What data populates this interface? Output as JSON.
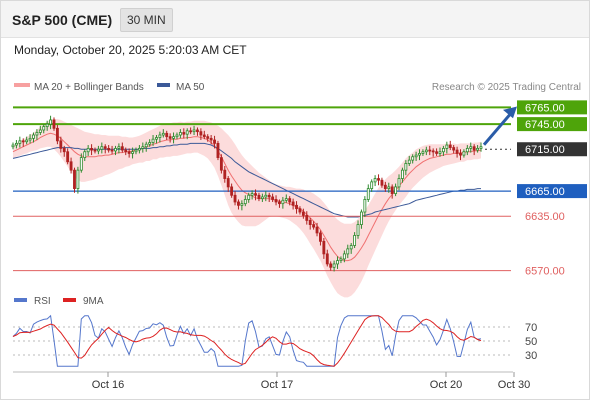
{
  "header": {
    "title": "S&P 500 (CME)",
    "interval": "30 MIN",
    "timestamp": "Monday, October 20, 2025 5:20:03 AM CET"
  },
  "legend": {
    "ma20_bb": "MA 20 + Bollinger Bands",
    "ma50": "MA 50",
    "credit": "Research © 2025 Trading Central",
    "rsi": "RSI",
    "rsi_ma": "9MA"
  },
  "colors": {
    "resistance": "#4ea40a",
    "pivot": "#333333",
    "support_ma": "#1f5fbf",
    "support": "#e06060",
    "candle_up": "#2e8b2e",
    "candle_down": "#b02222",
    "bollinger": "#fbd0d0",
    "ma20": "#f07070",
    "ma50": "#3b5998",
    "rsi_line": "#5577cc",
    "rsi_ma_line": "#dd2222",
    "arrow": "#2a5ca8"
  },
  "chart_data": [
    {
      "type": "candlestick",
      "ylim": [
        6560,
        6775
      ],
      "levels": [
        {
          "label": "6765.00",
          "value": 6765,
          "kind": "resistance"
        },
        {
          "label": "6745.00",
          "value": 6745,
          "kind": "resistance"
        },
        {
          "label": "6715.00",
          "value": 6715,
          "kind": "pivot"
        },
        {
          "label": "6665.00",
          "value": 6665,
          "kind": "support_ma"
        },
        {
          "label": "6635.00",
          "value": 6635,
          "kind": "support"
        },
        {
          "label": "6570.00",
          "value": 6570,
          "kind": "support"
        }
      ],
      "x_ticks": [
        "Oct 16",
        "Oct 17",
        "Oct 20",
        "Oct 30"
      ],
      "series": [
        {
          "name": "MA 20 + Bollinger Bands"
        },
        {
          "name": "MA 50"
        }
      ],
      "close": [
        6720,
        6722,
        6725,
        6724,
        6726,
        6728,
        6732,
        6735,
        6738,
        6742,
        6745,
        6750,
        6740,
        6725,
        6716,
        6712,
        6700,
        6690,
        6668,
        6690,
        6705,
        6712,
        6716,
        6714,
        6713,
        6715,
        6718,
        6716,
        6714,
        6713,
        6716,
        6718,
        6714,
        6712,
        6710,
        6712,
        6714,
        6716,
        6718,
        6721,
        6723,
        6727,
        6729,
        6732,
        6734,
        6730,
        6728,
        6730,
        6732,
        6735,
        6733,
        6737,
        6736,
        6738,
        6736,
        6732,
        6730,
        6728,
        6726,
        6722,
        6705,
        6690,
        6680,
        6670,
        6660,
        6652,
        6648,
        6650,
        6655,
        6660,
        6662,
        6660,
        6656,
        6658,
        6660,
        6658,
        6655,
        6652,
        6650,
        6654,
        6656,
        6652,
        6648,
        6644,
        6640,
        6636,
        6630,
        6625,
        6622,
        6615,
        6605,
        6590,
        6578,
        6574,
        6578,
        6582,
        6584,
        6590,
        6596,
        6600,
        6612,
        6625,
        6640,
        6655,
        6668,
        6676,
        6680,
        6678,
        6672,
        6668,
        6670,
        6662,
        6670,
        6680,
        6690,
        6698,
        6702,
        6706,
        6708,
        6710,
        6712,
        6714,
        6713,
        6712,
        6710,
        6712,
        6716,
        6720,
        6717,
        6714,
        6710,
        6708,
        6712,
        6716,
        6718,
        6714,
        6716,
        6718
      ],
      "ma20": [
        6712,
        6714,
        6716,
        6718,
        6720,
        6722,
        6724,
        6726,
        6729,
        6731,
        6733,
        6734,
        6733,
        6731,
        6728,
        6724,
        6720,
        6716,
        6712,
        6709,
        6707,
        6706,
        6706,
        6706,
        6706,
        6707,
        6707,
        6708,
        6708,
        6709,
        6710,
        6711,
        6711,
        6712,
        6712,
        6713,
        6714,
        6715,
        6716,
        6718,
        6719,
        6721,
        6722,
        6724,
        6725,
        6726,
        6726,
        6727,
        6727,
        6728,
        6728,
        6729,
        6729,
        6730,
        6730,
        6729,
        6728,
        6726,
        6723,
        6719,
        6713,
        6706,
        6698,
        6690,
        6683,
        6677,
        6671,
        6666,
        6663,
        6661,
        6659,
        6657,
        6656,
        6656,
        6656,
        6656,
        6655,
        6654,
        6653,
        6652,
        6651,
        6650,
        6648,
        6646,
        6644,
        6641,
        6637,
        6633,
        6629,
        6624,
        6619,
        6612,
        6605,
        6598,
        6592,
        6587,
        6584,
        6582,
        6582,
        6583,
        6586,
        6591,
        6597,
        6604,
        6612,
        6620,
        6628,
        6636,
        6643,
        6650,
        6656,
        6661,
        6666,
        6671,
        6676,
        6681,
        6686,
        6690,
        6694,
        6697,
        6700,
        6702,
        6704,
        6705,
        6706,
        6707,
        6708,
        6709,
        6709,
        6710,
        6710,
        6711,
        6711,
        6712,
        6712,
        6713,
        6713,
        6714
      ],
      "bb_width": [
        8,
        8,
        9,
        9,
        10,
        10,
        11,
        12,
        13,
        14,
        15,
        16,
        18,
        20,
        22,
        24,
        26,
        28,
        30,
        31,
        31,
        30,
        29,
        28,
        27,
        26,
        25,
        24,
        23,
        22,
        21,
        20,
        19,
        18,
        17,
        16,
        16,
        16,
        17,
        17,
        18,
        18,
        19,
        19,
        20,
        20,
        20,
        20,
        20,
        20,
        19,
        19,
        19,
        19,
        19,
        20,
        21,
        22,
        24,
        26,
        30,
        34,
        38,
        42,
        44,
        44,
        43,
        42,
        40,
        38,
        36,
        34,
        31,
        28,
        25,
        22,
        20,
        19,
        19,
        19,
        19,
        20,
        21,
        22,
        24,
        26,
        28,
        31,
        33,
        35,
        37,
        39,
        41,
        42,
        43,
        44,
        44,
        44,
        44,
        43,
        42,
        41,
        40,
        38,
        36,
        35,
        34,
        33,
        31,
        29,
        27,
        25,
        24,
        23,
        23,
        23,
        22,
        21,
        21,
        20,
        19,
        18,
        17,
        16,
        15,
        14,
        13,
        13,
        12,
        12,
        11,
        11,
        11,
        10,
        10,
        10,
        10,
        10
      ],
      "ma50": [
        6704,
        6705,
        6706,
        6707,
        6708,
        6709,
        6710,
        6711,
        6712,
        6713,
        6714,
        6715,
        6716,
        6717,
        6717,
        6717,
        6717,
        6717,
        6716,
        6716,
        6715,
        6715,
        6715,
        6715,
        6715,
        6715,
        6715,
        6715,
        6715,
        6715,
        6715,
        6715,
        6715,
        6715,
        6715,
        6715,
        6715,
        6715,
        6716,
        6716,
        6716,
        6717,
        6717,
        6718,
        6718,
        6719,
        6719,
        6720,
        6720,
        6721,
        6721,
        6721,
        6722,
        6722,
        6722,
        6722,
        6722,
        6721,
        6720,
        6718,
        6716,
        6713,
        6710,
        6707,
        6704,
        6700,
        6697,
        6694,
        6691,
        6688,
        6686,
        6684,
        6682,
        6680,
        6678,
        6676,
        6674,
        6672,
        6670,
        6668,
        6666,
        6664,
        6662,
        6660,
        6658,
        6656,
        6654,
        6652,
        6650,
        6648,
        6646,
        6644,
        6642,
        6640,
        6638,
        6637,
        6636,
        6635,
        6634,
        6634,
        6634,
        6634,
        6635,
        6636,
        6637,
        6638,
        6640,
        6641,
        6642,
        6643,
        6644,
        6645,
        6646,
        6647,
        6648,
        6649,
        6650,
        6652,
        6654,
        6655,
        6656,
        6657,
        6658,
        6659,
        6660,
        6661,
        6662,
        6663,
        6664,
        6665,
        6665,
        6666,
        6666,
        6667,
        6667,
        6667,
        6668,
        6668
      ]
    },
    {
      "type": "line",
      "ylim": [
        10,
        90
      ],
      "y_ticks": [
        70,
        50,
        30
      ],
      "series": [
        {
          "name": "RSI"
        },
        {
          "name": "9MA"
        }
      ]
    }
  ]
}
